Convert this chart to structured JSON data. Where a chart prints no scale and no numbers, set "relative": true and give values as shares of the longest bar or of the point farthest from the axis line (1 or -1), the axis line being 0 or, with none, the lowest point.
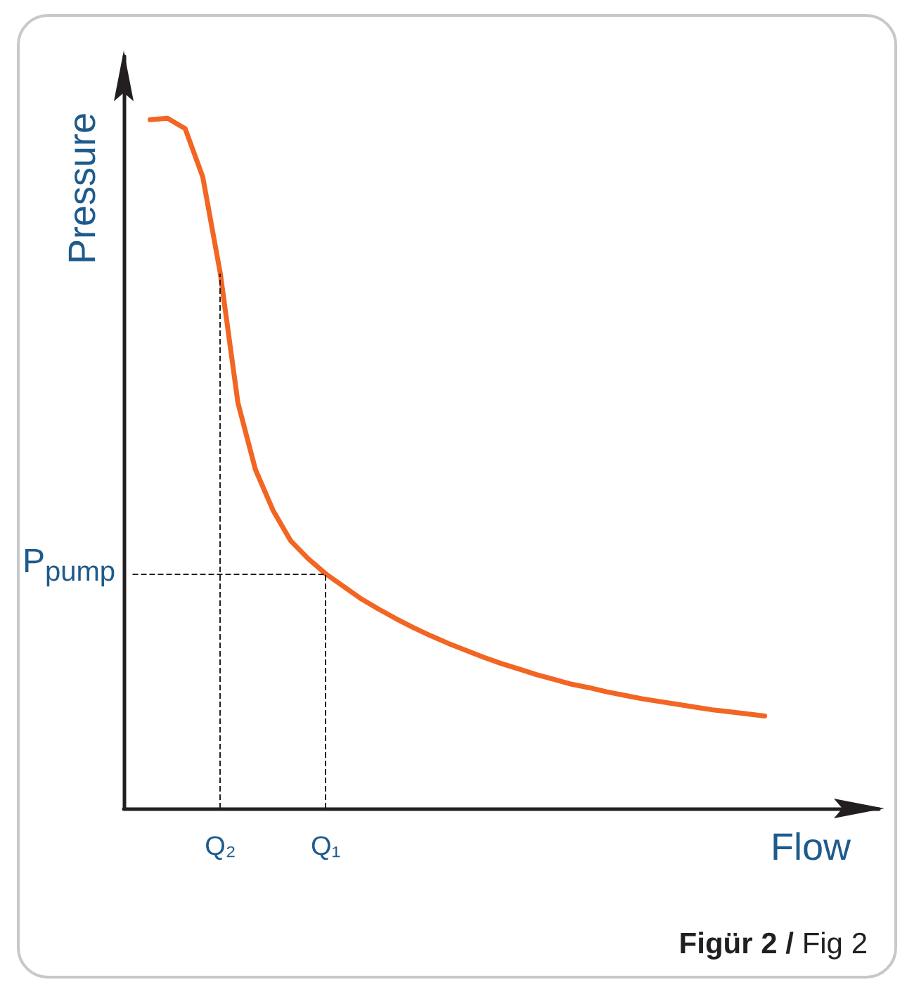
{
  "chart_data": {
    "type": "line",
    "relative": true,
    "xlabel": "Flow",
    "ylabel": "Pressure",
    "categories": [
      null,
      null,
      null,
      null,
      null,
      "Q₂",
      null,
      null,
      null,
      null,
      null,
      "Q₁",
      null,
      null,
      null,
      null,
      null,
      null,
      null,
      null,
      null,
      null,
      null,
      null,
      null,
      null,
      null,
      null,
      null,
      null,
      null,
      null,
      null,
      null,
      null,
      null,
      null,
      null,
      null,
      null,
      null,
      null,
      null
    ],
    "series": [
      {
        "color": "#f26522",
        "values": [
          null,
          0.998,
          1,
          0.985,
          0.915,
          0.775,
          0.588,
          0.491,
          0.432,
          0.388,
          0.362,
          0.34,
          0.322,
          0.304,
          0.289,
          0.275,
          0.262,
          0.25,
          0.239,
          0.229,
          0.219,
          0.21,
          0.202,
          0.194,
          0.187,
          0.18,
          0.175,
          0.169,
          0.164,
          0.159,
          0.155,
          0.151,
          0.147,
          0.143,
          0.14,
          0.137,
          0.134,
          null,
          null,
          null,
          null,
          null,
          null
        ]
      }
    ],
    "ref_lines": [
      {
        "axis": "x",
        "value": "Q₂",
        "line_style": "dashed",
        "color": "#231f20"
      },
      {
        "axis": "x",
        "value": "Q₁",
        "line_style": "dashed",
        "color": "#231f20"
      },
      {
        "axis": "y",
        "value": 0.34,
        "label": "P$_{pump}$",
        "line_style": "dashed",
        "color": "#231f20"
      }
    ],
    "annotations": [
      "Figür 2 / Fig 2"
    ],
    "grid": false,
    "marker": "none",
    "line_style": "solid"
  }
}
